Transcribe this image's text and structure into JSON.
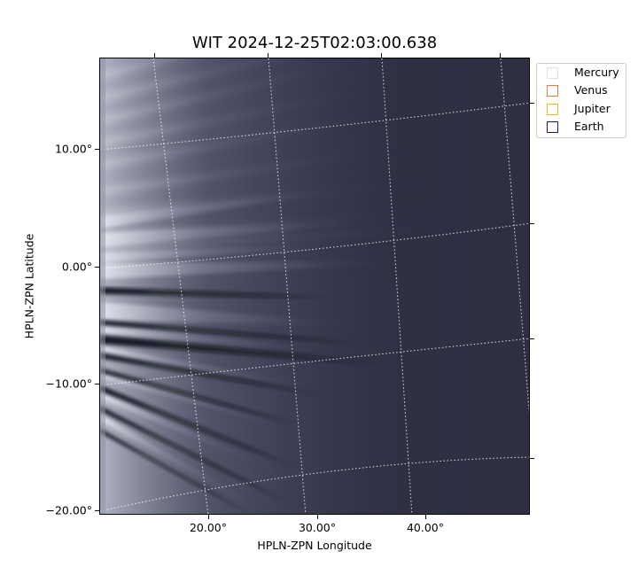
{
  "title": "WIT 2024-12-25T02:03:00.638",
  "axes": {
    "x_label": "HPLN-ZPN Longitude",
    "y_label": "HPLN-ZPN Latitude",
    "x_ticks": [
      "20.00°",
      "30.00°",
      "40.00°"
    ],
    "y_ticks": [
      "10.00°",
      "0.00°",
      "−10.00°",
      "−20.00°"
    ]
  },
  "legend": {
    "placement": "outside-top-right",
    "items": [
      {
        "label": "Mercury",
        "color": "#e0e0e0"
      },
      {
        "label": "Venus",
        "color": "#e07b39"
      },
      {
        "label": "Jupiter",
        "color": "#e8b923"
      },
      {
        "label": "Earth",
        "color": "#1a1a7a"
      }
    ]
  },
  "image": {
    "colormap": "bone",
    "background_color": "#2b2c3f",
    "grid": "dotted white coordinate grid",
    "content": "heliospheric white-light image with bright radial coronal streamers and dark bands emanating from the left edge"
  }
}
